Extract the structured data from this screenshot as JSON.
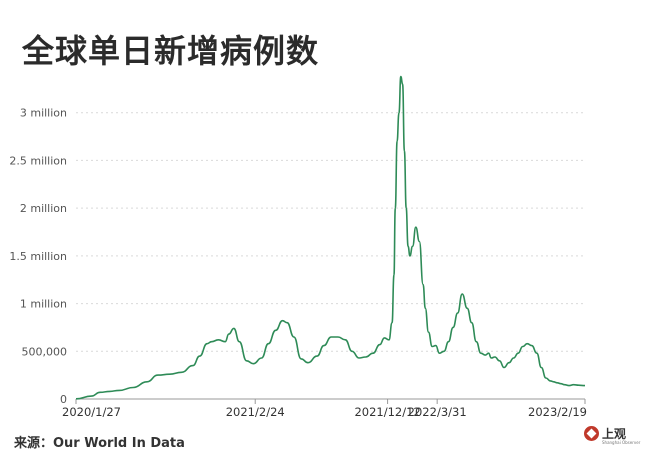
{
  "header": {
    "title": "全球单日新增病例数"
  },
  "footer": {
    "source": "来源：Our World In Data"
  },
  "logo": {
    "text": "上观",
    "subtext": "Shanghai Observer",
    "color": "#c0392b"
  },
  "colors": {
    "line": "#2e8b57",
    "grid": "#d9d9d9",
    "axis": "#999999"
  },
  "chart_data": {
    "type": "line",
    "title": "全球单日新增病例数",
    "xlabel": "",
    "ylabel": "",
    "grid": true,
    "ylim": [
      0,
      3500000
    ],
    "y_ticks": [
      {
        "value": 0,
        "label": "0"
      },
      {
        "value": 500000,
        "label": "500,000"
      },
      {
        "value": 1000000,
        "label": "1 million"
      },
      {
        "value": 1500000,
        "label": "1.5 million"
      },
      {
        "value": 2000000,
        "label": "2 million"
      },
      {
        "value": 2500000,
        "label": "2.5 million"
      },
      {
        "value": 3000000,
        "label": "3 million"
      }
    ],
    "x_ticks": [
      {
        "date": "2020/1/27",
        "label": "2020/1/27"
      },
      {
        "date": "2021/2/24",
        "label": "2021/2/24"
      },
      {
        "date": "2021/12/12",
        "label": "2021/12/12"
      },
      {
        "date": "2022/3/31",
        "label": "2022/3/31"
      },
      {
        "date": "2023/2/19",
        "label": "2023/2/19"
      }
    ],
    "xlim": [
      "2020/1/27",
      "2023/2/19"
    ],
    "series": [
      {
        "x": [
          "2020/1/27",
          "2020/3/1",
          "2020/3/20",
          "2020/4/10",
          "2020/5/1",
          "2020/6/1",
          "2020/7/1",
          "2020/7/25",
          "2020/8/20",
          "2020/9/15",
          "2020/10/10",
          "2020/10/25",
          "2020/11/10",
          "2020/11/20",
          "2020/12/5",
          "2020/12/20",
          "2020/12/28",
          "2021/1/8",
          "2021/1/20",
          "2021/2/5",
          "2021/2/20",
          "2021/3/10",
          "2021/3/25",
          "2021/4/10",
          "2021/4/25",
          "2021/5/5",
          "2021/5/20",
          "2021/6/5",
          "2021/6/20",
          "2021/7/10",
          "2021/7/25",
          "2021/8/10",
          "2021/8/25",
          "2021/9/10",
          "2021/9/25",
          "2021/10/10",
          "2021/10/25",
          "2021/11/10",
          "2021/11/25",
          "2021/12/5",
          "2021/12/15",
          "2021/12/22",
          "2021/12/26",
          "2021/12/29",
          "2022/1/2",
          "2022/1/6",
          "2022/1/10",
          "2022/1/14",
          "2022/1/18",
          "2022/1/22",
          "2022/1/26",
          "2022/1/30",
          "2022/2/5",
          "2022/2/12",
          "2022/2/20",
          "2022/2/28",
          "2022/3/5",
          "2022/3/12",
          "2022/3/20",
          "2022/3/28",
          "2022/4/5",
          "2022/4/15",
          "2022/4/25",
          "2022/5/5",
          "2022/5/15",
          "2022/5/25",
          "2022/6/5",
          "2022/6/15",
          "2022/6/25",
          "2022/7/5",
          "2022/7/15",
          "2022/7/22",
          "2022/7/28",
          "2022/8/5",
          "2022/8/15",
          "2022/8/25",
          "2022/9/5",
          "2022/9/15",
          "2022/9/25",
          "2022/10/5",
          "2022/10/15",
          "2022/10/25",
          "2022/11/5",
          "2022/11/15",
          "2022/11/25",
          "2022/12/5",
          "2022/12/12",
          "2022/12/20",
          "2022/12/28",
          "2023/1/5",
          "2023/1/15",
          "2023/1/25",
          "2023/2/5",
          "2023/2/19"
        ],
        "y": [
          2000,
          30000,
          70000,
          80000,
          90000,
          120000,
          180000,
          250000,
          260000,
          280000,
          350000,
          450000,
          580000,
          600000,
          620000,
          600000,
          680000,
          740000,
          600000,
          400000,
          370000,
          430000,
          580000,
          720000,
          820000,
          800000,
          650000,
          420000,
          380000,
          450000,
          560000,
          650000,
          650000,
          620000,
          500000,
          430000,
          440000,
          480000,
          570000,
          640000,
          620000,
          800000,
          1300000,
          2000000,
          2700000,
          3000000,
          3380000,
          3300000,
          2600000,
          2000000,
          1600000,
          1500000,
          1600000,
          1800000,
          1650000,
          1200000,
          950000,
          700000,
          550000,
          560000,
          480000,
          500000,
          600000,
          750000,
          900000,
          1100000,
          950000,
          800000,
          600000,
          480000,
          460000,
          480000,
          430000,
          440000,
          400000,
          330000,
          380000,
          430000,
          480000,
          550000,
          580000,
          560000,
          480000,
          330000,
          220000,
          190000,
          180000,
          170000,
          160000,
          150000,
          140000,
          150000,
          145000,
          140000
        ]
      }
    ]
  }
}
